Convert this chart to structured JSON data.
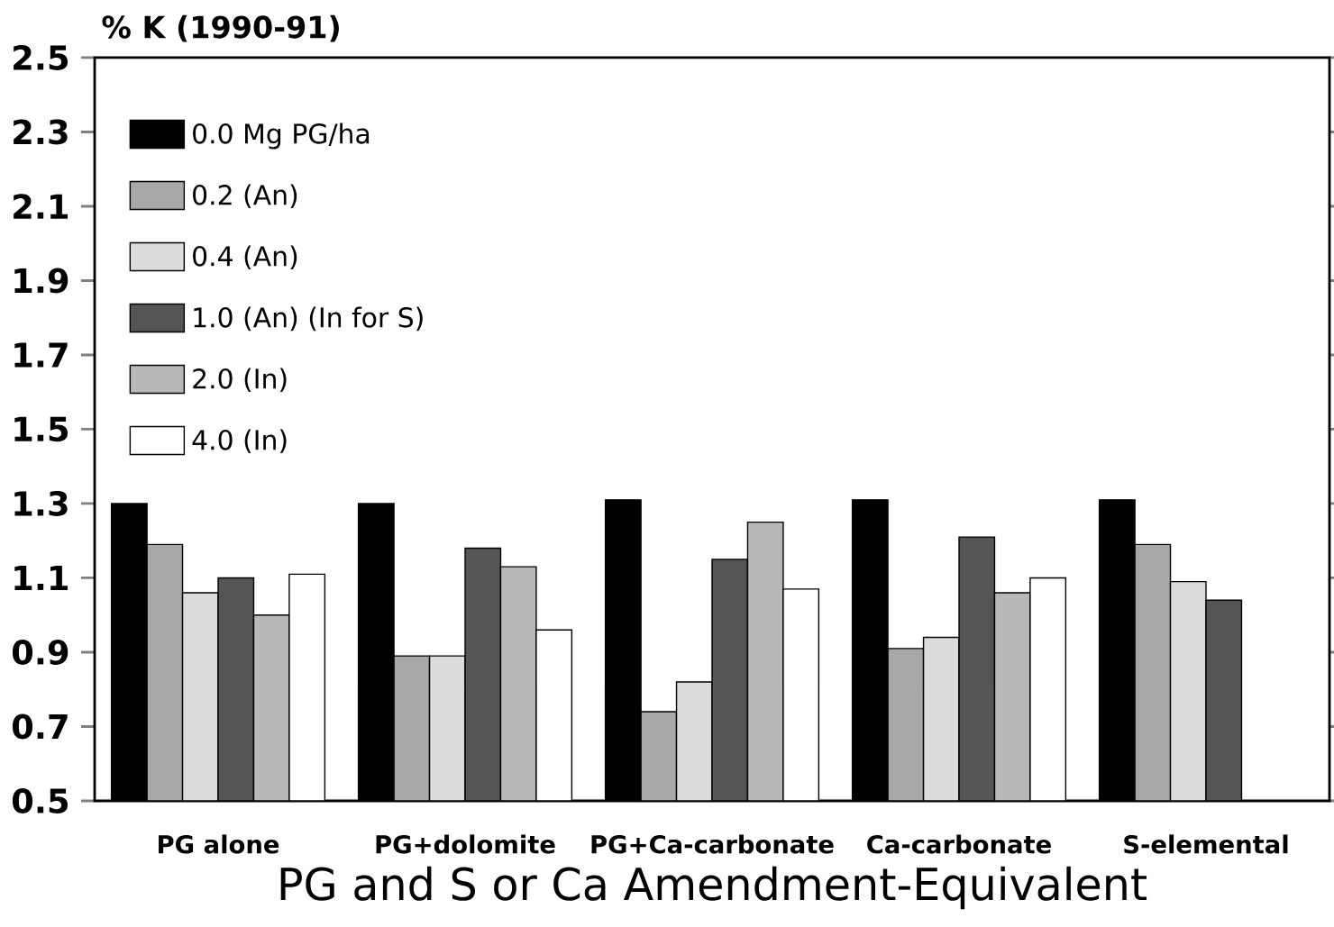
{
  "chart_data": {
    "type": "bar",
    "xlabel": "PG and S or Ca Amendment-Equivalent",
    "ylabel": "% K (1990-91)",
    "categories": [
      "PG alone",
      "PG+dolomite",
      "PG+Ca-carbonate",
      "Ca-carbonate",
      "S-elemental"
    ],
    "series": [
      {
        "name": "0.0 Mg PG/ha",
        "color": "#000000",
        "values": [
          1.3,
          1.3,
          1.31,
          1.31,
          1.31
        ]
      },
      {
        "name": "0.2 (An)",
        "color": "#a8a8a8",
        "values": [
          1.19,
          0.89,
          0.74,
          0.91,
          1.19
        ]
      },
      {
        "name": "0.4 (An)",
        "color": "#dcdcdc",
        "values": [
          1.06,
          0.89,
          0.82,
          0.94,
          1.09
        ]
      },
      {
        "name": "1.0 (An) (In for S)",
        "color": "#555555",
        "values": [
          1.1,
          1.18,
          1.15,
          1.21,
          1.04
        ]
      },
      {
        "name": "2.0 (In)",
        "color": "#b8b8b8",
        "values": [
          1.0,
          1.13,
          1.25,
          1.06,
          null
        ]
      },
      {
        "name": "4.0 (In)",
        "color": "#ffffff",
        "values": [
          1.11,
          0.96,
          1.07,
          1.1,
          null
        ]
      }
    ],
    "ylim": [
      0.5,
      2.5
    ],
    "yticks": [
      0.5,
      0.7,
      0.9,
      1.1,
      1.3,
      1.5,
      1.7,
      1.9,
      2.1,
      2.3,
      2.5
    ],
    "legend": "top left"
  }
}
